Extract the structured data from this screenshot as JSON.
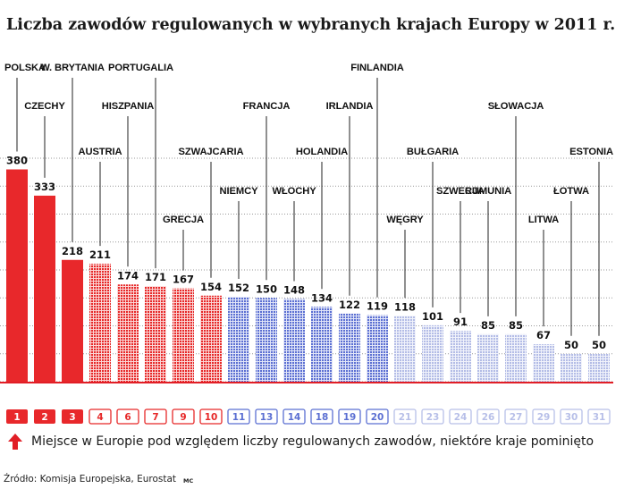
{
  "title": "Liczba zawodów regulowanych w wybranych krajach Europy w 2011 r.",
  "note": "Miejsce w Europie pod względem liczby regulowanych zawodów, niektóre kraje pominięto",
  "source_label": "Źródło:",
  "source": "Komisja Europejska, Eurostat",
  "credit": "MC",
  "colors": {
    "solid_red": "#e8282b",
    "dotted_red": "#e62828",
    "blue": "#5b6fd2",
    "light_blue": "#b7bfe8",
    "baseline": "#e11e26"
  },
  "chart_data": {
    "type": "bar",
    "title": "Liczba zawodów regulowanych w wybranych krajach Europy w 2011 r.",
    "xlabel": "",
    "ylabel": "",
    "ylim": [
      0,
      400
    ],
    "grid": true,
    "categories": [
      "POLSKA",
      "CZECHY",
      "W. BRYTANIA",
      "AUSTRIA",
      "HISZPANIA",
      "PORTUGALIA",
      "GRECJA",
      "SZWAJCARIA",
      "NIEMCY",
      "FRANCJA",
      "WŁOCHY",
      "HOLANDIA",
      "IRLANDIA",
      "FINLANDIA",
      "WĘGRY",
      "BUŁGARIA",
      "SZWECJA",
      "RUMUNIA",
      "SŁOWACJA",
      "LITWA",
      "ŁOTWA",
      "ESTONIA"
    ],
    "values": [
      380,
      333,
      218,
      211,
      174,
      171,
      167,
      154,
      152,
      150,
      148,
      134,
      122,
      119,
      118,
      101,
      91,
      85,
      85,
      67,
      50,
      50
    ],
    "ranks": [
      "1",
      "2",
      "3",
      "4",
      "6",
      "7",
      "9",
      "10",
      "11",
      "13",
      "14",
      "18",
      "19",
      "20",
      "21",
      "23",
      "24",
      "26",
      "27",
      "29",
      "30",
      "31"
    ],
    "value_labels": [
      "380",
      "333",
      "218",
      "211",
      "174",
      "171",
      "167",
      "154",
      "152",
      "150",
      "148",
      "134",
      "122",
      "119",
      "118",
      "101",
      "91",
      "85",
      "85",
      "67",
      "50",
      "50"
    ],
    "styles": [
      "solid_red",
      "solid_red",
      "solid_red",
      "dotted_red",
      "dotted_red",
      "dotted_red",
      "dotted_red",
      "dotted_red",
      "blue",
      "blue",
      "blue",
      "blue",
      "blue",
      "blue",
      "light_blue",
      "light_blue",
      "light_blue",
      "light_blue",
      "light_blue",
      "light_blue",
      "light_blue",
      "light_blue"
    ]
  }
}
